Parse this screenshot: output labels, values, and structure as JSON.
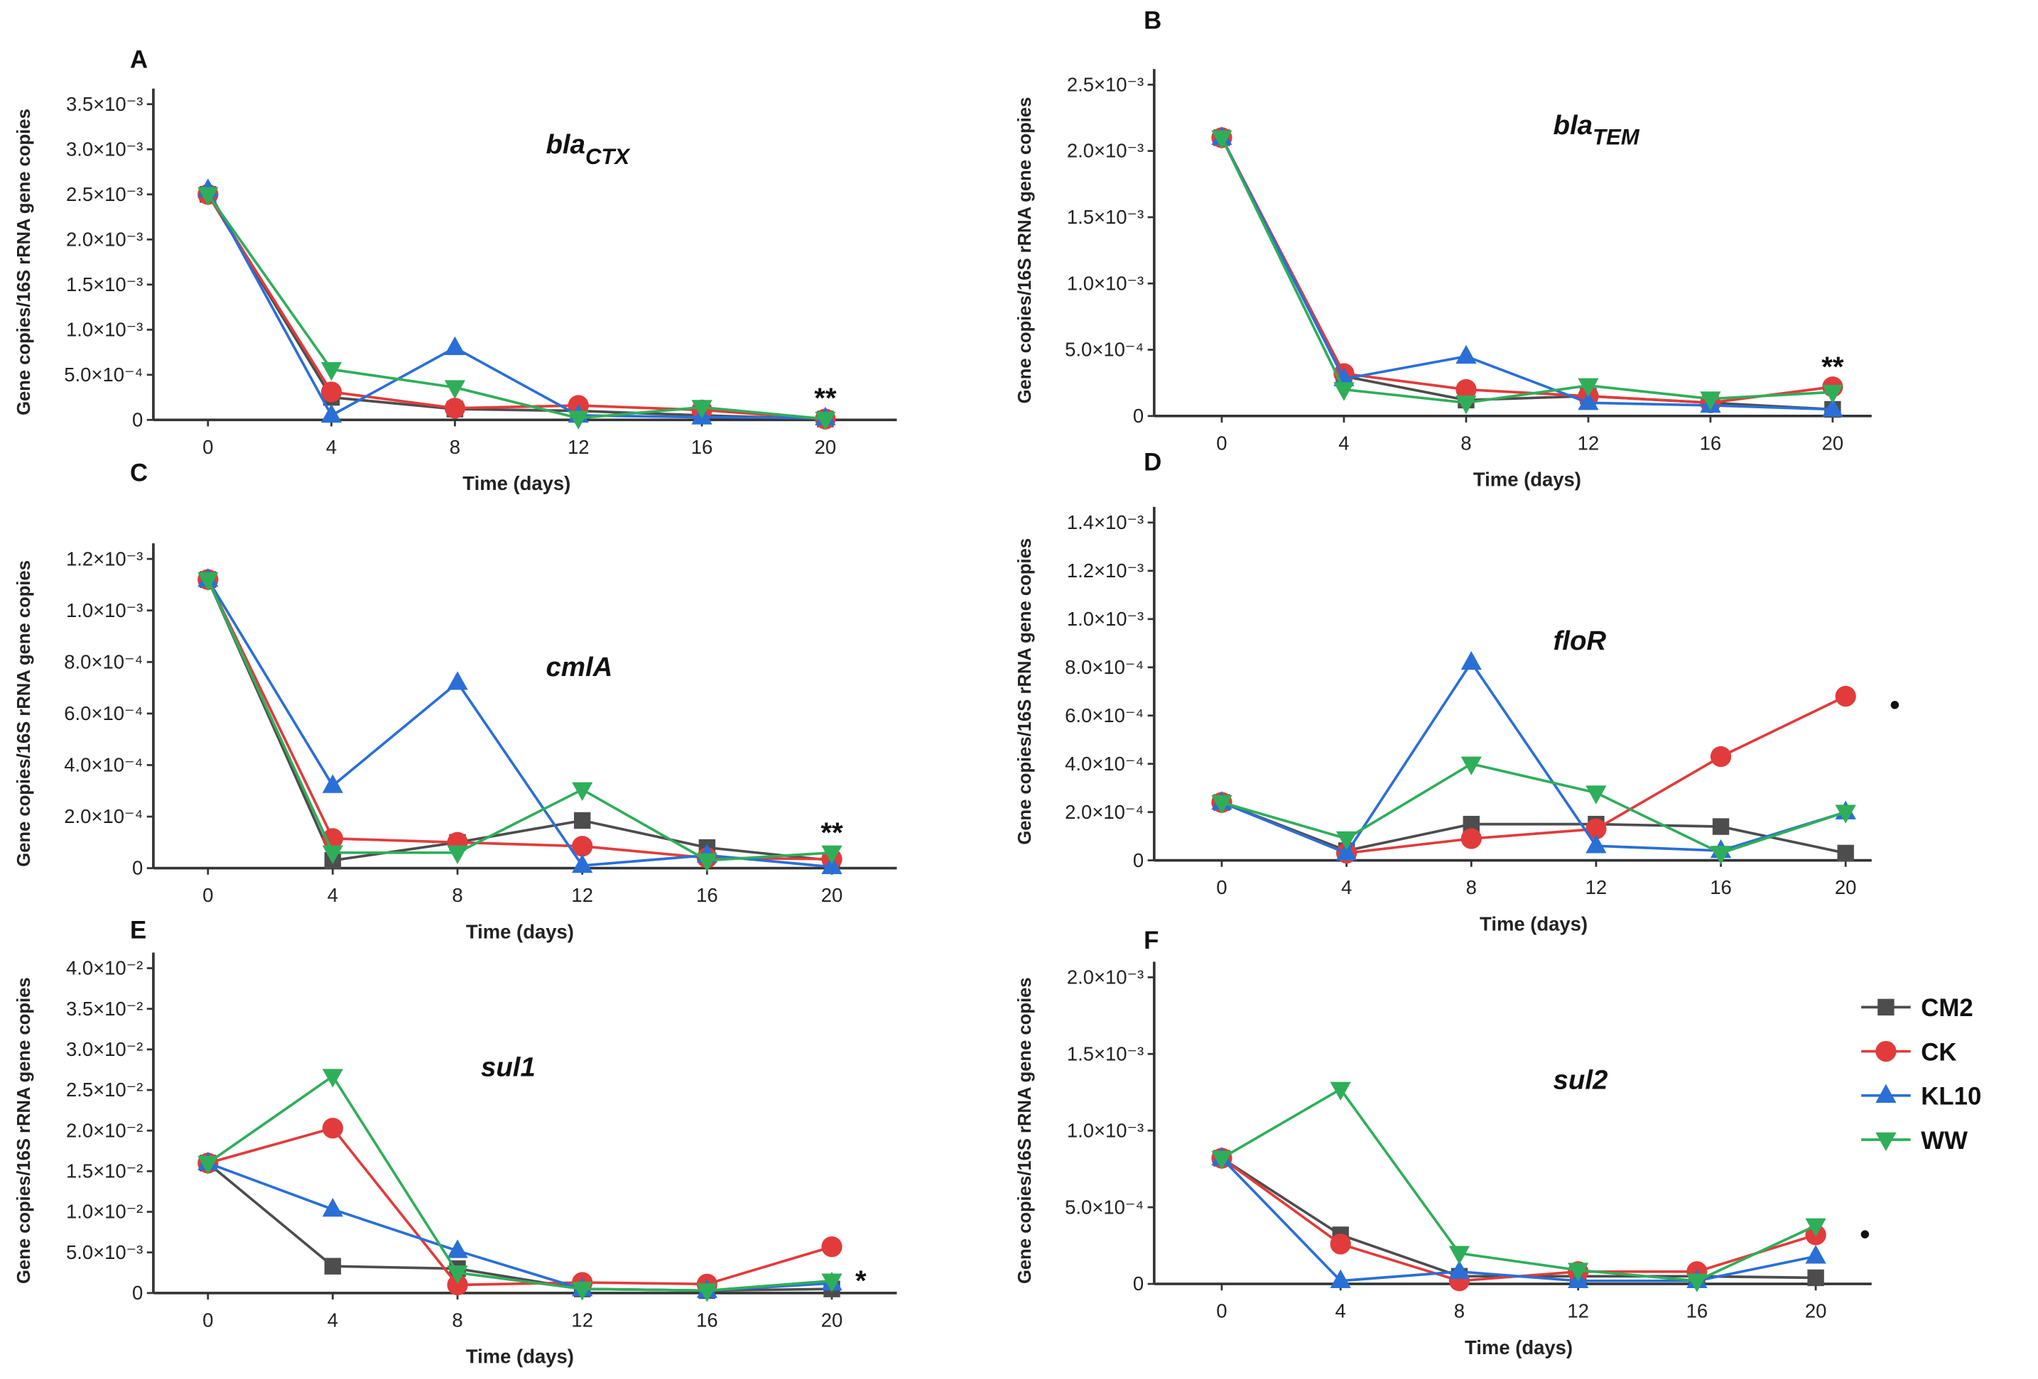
{
  "series_meta": [
    {
      "name": "CM2",
      "color": "#4d4d4d",
      "marker": "square"
    },
    {
      "name": "CK",
      "color": "#e23b3b",
      "marker": "circle"
    },
    {
      "name": "KL10",
      "color": "#2a6fd6",
      "marker": "triangle-up"
    },
    {
      "name": "WW",
      "color": "#2fae5a",
      "marker": "triangle-down"
    }
  ],
  "chart_data": [
    {
      "type": "line",
      "panel": "A",
      "title": "bla",
      "title_sub": "CTX",
      "xlabel": "Time (days)",
      "ylabel": "Gene copies/16S rRNA gene copies",
      "x": [
        0,
        4,
        8,
        12,
        16,
        20
      ],
      "ylim": [
        0,
        0.0035
      ],
      "yticks": [
        0,
        0.0005,
        0.001,
        0.0015,
        0.002,
        0.0025,
        0.003,
        0.0035
      ],
      "ytick_labels": [
        "0",
        "5.0×10⁻⁴",
        "1.0×10⁻³",
        "1.5×10⁻³",
        "2.0×10⁻³",
        "2.5×10⁻³",
        "3.0×10⁻³",
        "3.5×10⁻³"
      ],
      "annotation": "**",
      "series": [
        {
          "name": "CM2",
          "values": [
            0.0025,
            0.00025,
            0.00012,
            0.0001,
            5e-05,
            1e-05
          ]
        },
        {
          "name": "CK",
          "values": [
            0.0025,
            0.00031,
            0.00013,
            0.00016,
            0.00011,
            1e-05
          ]
        },
        {
          "name": "KL10",
          "values": [
            0.00255,
            5e-05,
            0.0008,
            5e-05,
            3e-05,
            2e-05
          ]
        },
        {
          "name": "WW",
          "values": [
            0.0025,
            0.00056,
            0.00036,
            2e-05,
            0.00014,
            1e-05
          ]
        }
      ]
    },
    {
      "type": "line",
      "panel": "B",
      "title": "bla",
      "title_sub": "TEM",
      "xlabel": "Time (days)",
      "ylabel": "Gene copies/16S rRNA gene copies",
      "x": [
        0,
        4,
        8,
        12,
        16,
        20
      ],
      "ylim": [
        0,
        0.0025
      ],
      "yticks": [
        0,
        0.0005,
        0.001,
        0.0015,
        0.002,
        0.0025
      ],
      "ytick_labels": [
        "0",
        "5.0×10⁻⁴",
        "1.0×10⁻³",
        "1.5×10⁻³",
        "2.0×10⁻³",
        "2.5×10⁻³"
      ],
      "annotation": "**",
      "series": [
        {
          "name": "CM2",
          "values": [
            0.0021,
            0.0003,
            0.00012,
            0.00015,
            0.0001,
            5e-05
          ]
        },
        {
          "name": "CK",
          "values": [
            0.0021,
            0.00032,
            0.0002,
            0.00015,
            0.0001,
            0.00022
          ]
        },
        {
          "name": "KL10",
          "values": [
            0.0021,
            0.00028,
            0.00045,
            0.0001,
            8e-05,
            5e-05
          ]
        },
        {
          "name": "WW",
          "values": [
            0.0021,
            0.0002,
            0.0001,
            0.00023,
            0.00013,
            0.00018
          ]
        }
      ]
    },
    {
      "type": "line",
      "panel": "C",
      "title": "cmlA",
      "title_sub": "",
      "xlabel": "Time (days)",
      "ylabel": "Gene copies/16S rRNA gene copies",
      "x": [
        0,
        4,
        8,
        12,
        16,
        20
      ],
      "ylim": [
        0,
        0.0012
      ],
      "yticks": [
        0,
        0.0002,
        0.0004,
        0.0006,
        0.0008,
        0.001,
        0.0012
      ],
      "ytick_labels": [
        "0",
        "2.0×10⁻⁴",
        "4.0×10⁻⁴",
        "6.0×10⁻⁴",
        "8.0×10⁻⁴",
        "1.0×10⁻³",
        "1.2×10⁻³"
      ],
      "annotation": "**",
      "series": [
        {
          "name": "CM2",
          "values": [
            0.00112,
            3e-05,
            0.0001,
            0.000185,
            8e-05,
            3e-05
          ]
        },
        {
          "name": "CK",
          "values": [
            0.00112,
            0.000115,
            0.0001,
            8.5e-05,
            4e-05,
            3.5e-05
          ]
        },
        {
          "name": "KL10",
          "values": [
            0.00112,
            0.00032,
            0.00072,
            1e-05,
            5e-05,
            5e-06
          ]
        },
        {
          "name": "WW",
          "values": [
            0.00112,
            6e-05,
            6e-05,
            0.000305,
            3e-05,
            6e-05
          ]
        }
      ]
    },
    {
      "type": "line",
      "panel": "D",
      "title": "floR",
      "title_sub": "",
      "xlabel": "Time (days)",
      "ylabel": "Gene copies/16S rRNA gene copies",
      "x": [
        0,
        4,
        8,
        12,
        16,
        20
      ],
      "ylim": [
        0,
        0.0014
      ],
      "yticks": [
        0,
        0.0002,
        0.0004,
        0.0006,
        0.0008,
        0.001,
        0.0012,
        0.0014
      ],
      "ytick_labels": [
        "0",
        "2.0×10⁻⁴",
        "4.0×10⁻⁴",
        "6.0×10⁻⁴",
        "8.0×10⁻⁴",
        "1.0×10⁻³",
        "1.2×10⁻³",
        "1.4×10⁻³"
      ],
      "annotation": "•",
      "series": [
        {
          "name": "CM2",
          "values": [
            0.00024,
            4e-05,
            0.00015,
            0.00015,
            0.00014,
            3e-05
          ]
        },
        {
          "name": "CK",
          "values": [
            0.00024,
            3e-05,
            9e-05,
            0.00013,
            0.00043,
            0.00068
          ]
        },
        {
          "name": "KL10",
          "values": [
            0.00024,
            3e-05,
            0.00082,
            6e-05,
            4e-05,
            0.0002
          ]
        },
        {
          "name": "WW",
          "values": [
            0.00024,
            9e-05,
            0.0004,
            0.00028,
            3e-05,
            0.0002
          ]
        }
      ]
    },
    {
      "type": "line",
      "panel": "E",
      "title": "sul1",
      "title_sub": "",
      "xlabel": "Time (days)",
      "ylabel": "Gene copies/16S rRNA gene copies",
      "x": [
        0,
        4,
        8,
        12,
        16,
        20
      ],
      "ylim": [
        0,
        0.04
      ],
      "yticks": [
        0,
        0.005,
        0.01,
        0.015,
        0.02,
        0.025,
        0.03,
        0.035,
        0.04
      ],
      "ytick_labels": [
        "0",
        "5.0×10⁻³",
        "1.0×10⁻²",
        "1.5×10⁻²",
        "2.0×10⁻²",
        "2.5×10⁻²",
        "3.0×10⁻²",
        "3.5×10⁻²",
        "4.0×10⁻²"
      ],
      "annotation": "*",
      "series": [
        {
          "name": "CM2",
          "values": [
            0.016,
            0.0033,
            0.003,
            0.0005,
            0.0003,
            0.0005
          ]
        },
        {
          "name": "CK",
          "values": [
            0.016,
            0.0203,
            0.001,
            0.0013,
            0.0011,
            0.0057
          ]
        },
        {
          "name": "KL10",
          "values": [
            0.016,
            0.0103,
            0.0052,
            0.0005,
            0.0003,
            0.0012
          ]
        },
        {
          "name": "WW",
          "values": [
            0.016,
            0.0267,
            0.0025,
            0.0005,
            0.0003,
            0.0015
          ]
        }
      ]
    },
    {
      "type": "line",
      "panel": "F",
      "title": "sul2",
      "title_sub": "",
      "xlabel": "Time (days)",
      "ylabel": "Gene copies/16S rRNA gene copies",
      "x": [
        0,
        4,
        8,
        12,
        16,
        20
      ],
      "ylim": [
        0,
        0.002
      ],
      "yticks": [
        0,
        0.0005,
        0.001,
        0.0015,
        0.002
      ],
      "ytick_labels": [
        "0",
        "5.0×10⁻⁴",
        "1.0×10⁻³",
        "1.5×10⁻³",
        "2.0×10⁻³"
      ],
      "annotation": "•",
      "series": [
        {
          "name": "CM2",
          "values": [
            0.00082,
            0.00032,
            5e-05,
            5e-05,
            5e-05,
            4e-05
          ]
        },
        {
          "name": "CK",
          "values": [
            0.00082,
            0.00026,
            2e-05,
            8e-05,
            8e-05,
            0.00032
          ]
        },
        {
          "name": "KL10",
          "values": [
            0.00082,
            2e-05,
            8e-05,
            2e-05,
            2e-05,
            0.00018
          ]
        },
        {
          "name": "WW",
          "values": [
            0.00082,
            0.00127,
            0.0002,
            9e-05,
            2e-05,
            0.00038
          ]
        }
      ]
    }
  ]
}
